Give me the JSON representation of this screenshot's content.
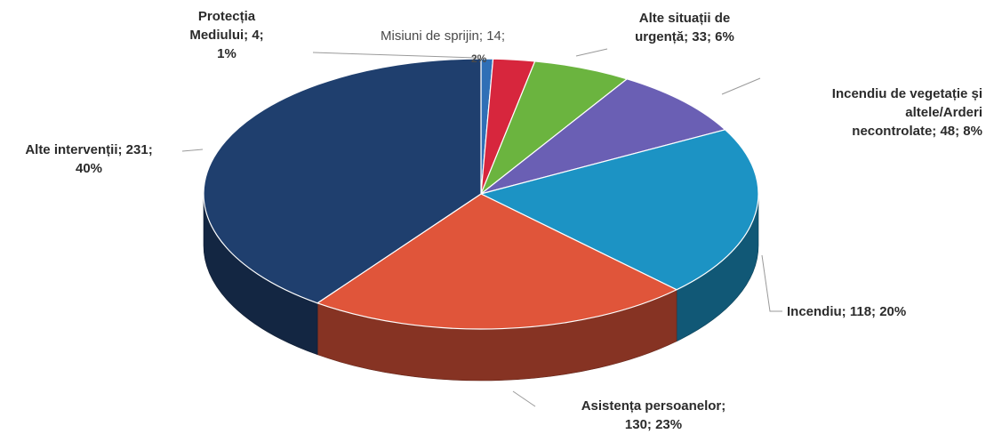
{
  "chart_data": {
    "type": "pie",
    "slices": [
      {
        "name": "Protecția Mediului",
        "value": 4,
        "percent": "1%",
        "color": "#2f6fb6",
        "label_lines": [
          "Protecția",
          "Mediului; 4;",
          "1%"
        ]
      },
      {
        "name": "Misiuni de sprijin",
        "value": 14,
        "percent": "2%",
        "color": "#d7263d",
        "label_lines": [
          "Misiuni de sprijin; 14;"
        ]
      },
      {
        "name": "Alte situații de urgență",
        "value": 33,
        "percent": "6%",
        "color": "#6bb43f",
        "label_lines": [
          "Alte situații de",
          "urgență; 33; 6%"
        ]
      },
      {
        "name": "Incendiu de vegetație și altele/Arderi necontrolate",
        "value": 48,
        "percent": "8%",
        "color": "#6a5fb4",
        "label_lines": [
          "Incendiu de vegetație și",
          "altele/Arderi",
          "necontrolate; 48; 8%"
        ]
      },
      {
        "name": "Incendiu",
        "value": 118,
        "percent": "20%",
        "color": "#1c93c4",
        "label_lines": [
          "Incendiu; 118; 20%"
        ]
      },
      {
        "name": "Asistența persoanelor",
        "value": 130,
        "percent": "23%",
        "color": "#e0553a",
        "label_lines": [
          "Asistența persoanelor;",
          "130; 23%"
        ]
      },
      {
        "name": "Alte intervenții",
        "value": 231,
        "percent": "40%",
        "color": "#1f3f6e",
        "label_lines": [
          "Alte intervenții; 231;",
          "40%"
        ]
      }
    ],
    "misiuni_pct_label": "2%"
  }
}
